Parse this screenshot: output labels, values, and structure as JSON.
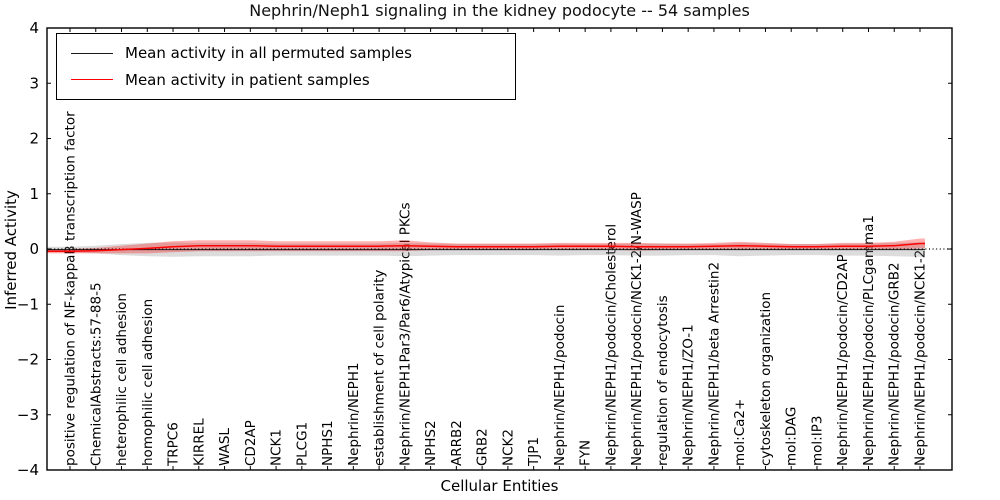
{
  "figure": {
    "background": "#ffffff"
  },
  "chart_data": {
    "type": "line",
    "title": "Nephrin/Neph1 signaling in the kidney podocyte -- 54 samples",
    "xlabel": "Cellular Entities",
    "ylabel": "Inferred Activity",
    "ylim": [
      -4,
      4
    ],
    "yticks": [
      -4,
      -3,
      -2,
      -1,
      0,
      1,
      2,
      3,
      4
    ],
    "grid": false,
    "zero_reference_line": {
      "y": 0,
      "style": "dotted",
      "color": "#000000"
    },
    "legend_position": "upper left",
    "categories": [
      "positive regulation of NF-kappaB transcription factor",
      "ChemicalAbstracts:57-88-5",
      "heterophilic cell adhesion",
      "homophilic cell adhesion",
      "TRPC6",
      "KIRREL",
      "WASL",
      "CD2AP",
      "NCK1",
      "PLCG1",
      "NPHS1",
      "Nephrin/NEPH1",
      "establishment of cell polarity",
      "Nephrin/NEPH1Par3/Par6/Atypical PKCs",
      "NPHS2",
      "ARRB2",
      "GRB2",
      "NCK2",
      "TJP1",
      "Nephrin/NEPH1/podocin",
      "FYN",
      "Nephrin/NEPH1/podocin/Cholesterol",
      "Nephrin/NEPH1/podocin/NCK1-2/N-WASP",
      "regulation of endocytosis",
      "Nephrin/NEPH1/ZO-1",
      "Nephrin/NEPH1/beta Arrestin2",
      "mol:Ca2+",
      "cytoskeleton organization",
      "mol:DAG",
      "mol:IP3",
      "Nephrin/NEPH1/podocin/CD2AP",
      "Nephrin/NEPH1/podocin/PLCgamma1",
      "Nephrin/NEPH1/podocin/GRB2",
      "Nephrin/NEPH1/podocin/NCK1-2"
    ],
    "series": [
      {
        "name": "Mean activity in all permuted samples",
        "color": "#1a1a1a",
        "band_color": "rgba(130,130,130,0.28)",
        "values": [
          -0.01,
          -0.01,
          -0.01,
          -0.01,
          -0.01,
          -0.01,
          -0.01,
          -0.01,
          -0.01,
          -0.01,
          -0.01,
          -0.01,
          -0.01,
          -0.01,
          -0.01,
          -0.01,
          -0.01,
          -0.01,
          -0.01,
          -0.01,
          -0.01,
          -0.01,
          -0.01,
          -0.01,
          -0.01,
          -0.01,
          -0.01,
          -0.01,
          -0.01,
          -0.01,
          -0.01,
          -0.01,
          -0.01,
          -0.01
        ],
        "std": [
          0.05,
          0.07,
          0.1,
          0.12,
          0.13,
          0.12,
          0.12,
          0.12,
          0.11,
          0.11,
          0.11,
          0.11,
          0.11,
          0.12,
          0.11,
          0.1,
          0.1,
          0.1,
          0.1,
          0.11,
          0.1,
          0.1,
          0.11,
          0.11,
          0.1,
          0.1,
          0.12,
          0.11,
          0.1,
          0.1,
          0.11,
          0.11,
          0.12,
          0.13
        ]
      },
      {
        "name": "Mean activity in patient samples",
        "color": "#ff0000",
        "band_color": "rgba(255,0,0,0.30)",
        "values": [
          -0.04,
          -0.03,
          -0.01,
          0.01,
          0.04,
          0.06,
          0.06,
          0.06,
          0.05,
          0.05,
          0.05,
          0.05,
          0.05,
          0.06,
          0.05,
          0.04,
          0.04,
          0.04,
          0.04,
          0.05,
          0.05,
          0.05,
          0.04,
          0.04,
          0.04,
          0.05,
          0.06,
          0.05,
          0.04,
          0.04,
          0.05,
          0.05,
          0.06,
          0.1
        ],
        "std": [
          0.04,
          0.05,
          0.07,
          0.09,
          0.1,
          0.1,
          0.1,
          0.1,
          0.09,
          0.09,
          0.09,
          0.09,
          0.09,
          0.1,
          0.07,
          0.06,
          0.06,
          0.06,
          0.06,
          0.06,
          0.06,
          0.06,
          0.07,
          0.06,
          0.06,
          0.06,
          0.07,
          0.06,
          0.05,
          0.05,
          0.06,
          0.06,
          0.07,
          0.09
        ]
      }
    ]
  }
}
